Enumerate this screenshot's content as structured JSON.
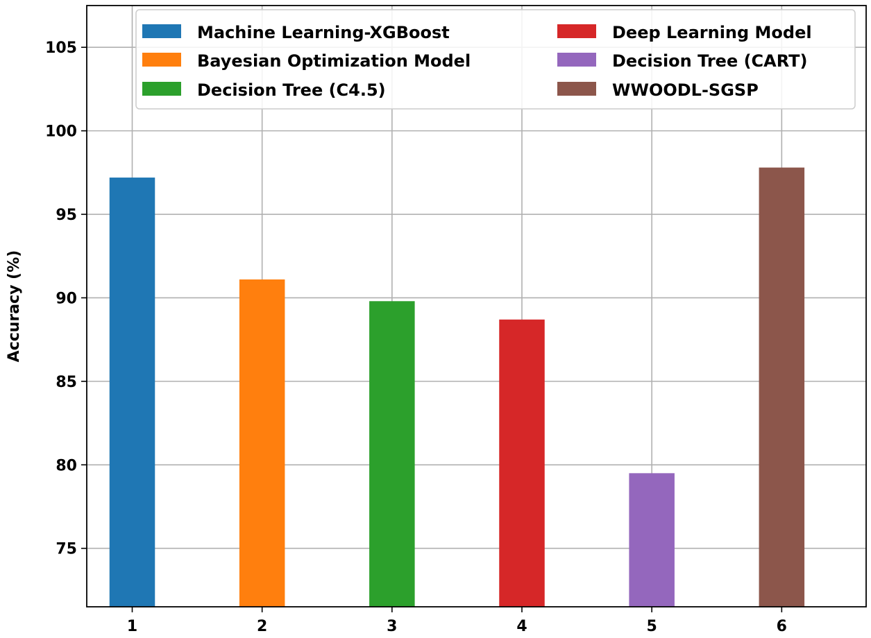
{
  "chart_data": {
    "type": "bar",
    "categories": [
      "1",
      "2",
      "3",
      "4",
      "5",
      "6"
    ],
    "series": [
      {
        "name": "Machine Learning-XGBoost",
        "color": "#1f77b4",
        "category": "1",
        "value": 97.2
      },
      {
        "name": "Bayesian Optimization Model",
        "color": "#ff7f0e",
        "category": "2",
        "value": 91.1
      },
      {
        "name": "Decision Tree (C4.5)",
        "color": "#2ca02c",
        "category": "3",
        "value": 89.8
      },
      {
        "name": "Deep Learning Model",
        "color": "#d62728",
        "category": "4",
        "value": 88.7
      },
      {
        "name": "Decision Tree (CART)",
        "color": "#9467bd",
        "category": "5",
        "value": 79.5
      },
      {
        "name": "WWOODL-SGSP",
        "color": "#8c564b",
        "category": "6",
        "value": 97.8
      }
    ],
    "xlabel": "",
    "ylabel": "Accuracy (%)",
    "ylim": [
      71.5,
      107.5
    ],
    "yticks": [
      75,
      80,
      85,
      90,
      95,
      100,
      105
    ],
    "grid": true,
    "legend_position": "top-right",
    "legend_columns": 2
  }
}
